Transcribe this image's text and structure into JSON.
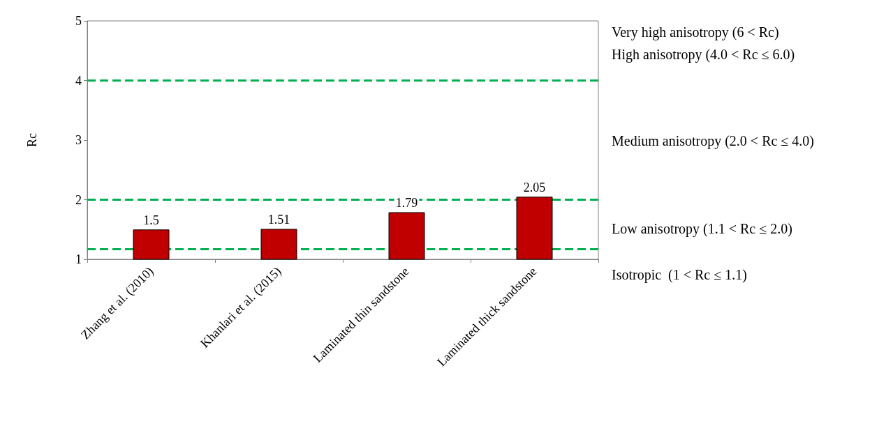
{
  "chart_data": {
    "type": "bar",
    "ylabel": "Rc",
    "categories": [
      "Zhang et al. (2010)",
      "Khanlari et al. (2015)",
      "Laminated thin sandstone",
      "Laminated thick sandstone"
    ],
    "values": [
      1.5,
      1.51,
      1.79,
      2.05
    ],
    "color": "#c00000",
    "data_labels": true,
    "ylim": [
      1,
      5
    ],
    "yticks": [
      1,
      2,
      3,
      4,
      5
    ],
    "grid": false,
    "ref_lines": [
      {
        "axis": "y",
        "value": 4,
        "label": null,
        "color": "#00b050",
        "line_style": "dashed"
      },
      {
        "axis": "y",
        "value": 2,
        "label": null,
        "color": "#00b050",
        "line_style": "dashed"
      },
      {
        "axis": "y",
        "value": 1.17,
        "label": null,
        "color": "#00b050",
        "line_style": "dashed"
      }
    ],
    "annotations": [
      "Very high anisotropy (6 < Rc)",
      "High anisotropy (4.0 < Rc ≤ 6.0)",
      "Medium anisotropy (2.0 < Rc ≤ 4.0)",
      "Low anisotropy (1.1 < Rc ≤ 2.0)",
      "Isotropic  (1 < Rc ≤ 1.1)"
    ]
  }
}
